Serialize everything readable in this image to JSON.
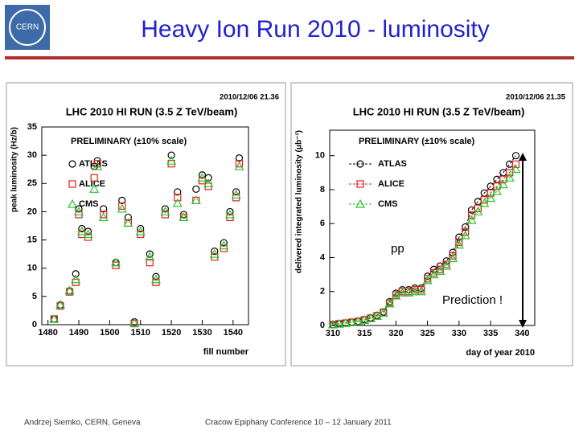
{
  "slide": {
    "title": "Heavy Ion Run 2010 - luminosity",
    "footer_left": "Andrzej Siemko, CERN, Geneva",
    "footer_center": "Cracow Epiphany Conference 10 – 12 January 2011"
  },
  "chart_data": [
    {
      "type": "scatter",
      "timestamp": "2010/12/06   21.36",
      "title": "LHC 2010 HI RUN (3.5 Z TeV/beam)",
      "note": "PRELIMINARY (±10% scale)",
      "y_label": "peak luminosity (Hz/b)",
      "x_label": "fill number",
      "xlim": [
        1478,
        1545
      ],
      "xticks": [
        1480,
        1490,
        1500,
        1510,
        1520,
        1530,
        1540
      ],
      "ylim": [
        0,
        35
      ],
      "yticks": [
        0,
        5,
        10,
        15,
        20,
        25,
        30,
        35
      ],
      "x": [
        1482,
        1484,
        1487,
        1489,
        1490,
        1491,
        1493,
        1495,
        1496,
        1498,
        1502,
        1504,
        1506,
        1508,
        1510,
        1513,
        1515,
        1518,
        1520,
        1522,
        1524,
        1528,
        1530,
        1532,
        1534,
        1537,
        1539,
        1541,
        1542
      ],
      "series": [
        {
          "name": "ATLAS",
          "color": "#000000",
          "marker": "circle",
          "values": [
            1,
            3.5,
            6,
            9,
            20.5,
            17,
            16.5,
            28,
            29,
            20.5,
            11,
            22,
            19,
            0.5,
            17,
            12.5,
            8.5,
            20.5,
            30,
            23.5,
            19.5,
            24,
            26.5,
            26,
            13,
            14.5,
            20,
            23.5,
            29.5
          ]
        },
        {
          "name": "ALICE",
          "color": "#e02020",
          "marker": "square",
          "values": [
            1,
            3.3,
            5.8,
            7.5,
            19.5,
            16,
            15.5,
            26,
            28.5,
            19.5,
            10.5,
            21,
            18,
            0.2,
            16,
            11,
            7.5,
            19.5,
            28.5,
            22.5,
            19,
            22,
            25.5,
            24.5,
            12,
            13.5,
            19,
            22.5,
            28.5
          ]
        },
        {
          "name": "CMS",
          "color": "#30c030",
          "marker": "triangle",
          "values": [
            1,
            3.5,
            6,
            8,
            20,
            16.5,
            16,
            24,
            28,
            19,
            11,
            20.5,
            18,
            0.3,
            16.5,
            12,
            8,
            20,
            29,
            21.5,
            19,
            22,
            26,
            25,
            12.5,
            14,
            19.5,
            23,
            28
          ]
        }
      ]
    },
    {
      "type": "line",
      "timestamp": "2010/12/06   21.35",
      "title": "LHC 2010 HI RUN (3.5 Z TeV/beam)",
      "note": "PRELIMINARY (±10% scale)",
      "y_label": "delivered integrated luminosity (μb⁻¹)",
      "x_label": "day of year 2010",
      "annotations": [
        "pp",
        "Prediction !"
      ],
      "xlim": [
        309.5,
        342
      ],
      "xticks": [
        310,
        315,
        320,
        325,
        330,
        335,
        340
      ],
      "ylim": [
        0,
        11.5
      ],
      "yticks": [
        0,
        2,
        4,
        6,
        8,
        10
      ],
      "x": [
        310,
        311,
        312,
        313,
        314,
        315,
        316,
        317,
        318,
        319,
        320,
        321,
        322,
        323,
        324,
        325,
        326,
        327,
        328,
        329,
        330,
        331,
        332,
        333,
        334,
        335,
        336,
        337,
        338,
        339
      ],
      "series": [
        {
          "name": "ATLAS",
          "color": "#000000",
          "marker": "circle",
          "values": [
            0.05,
            0.1,
            0.15,
            0.2,
            0.25,
            0.35,
            0.45,
            0.6,
            0.8,
            1.4,
            1.9,
            2.1,
            2.1,
            2.2,
            2.2,
            2.9,
            3.3,
            3.5,
            3.8,
            4.3,
            5.2,
            5.8,
            6.8,
            7.3,
            7.8,
            8.2,
            8.6,
            9.0,
            9.5,
            10.0
          ]
        },
        {
          "name": "ALICE",
          "color": "#e02020",
          "marker": "square",
          "values": [
            0.05,
            0.1,
            0.14,
            0.19,
            0.24,
            0.33,
            0.43,
            0.57,
            0.76,
            1.33,
            1.8,
            2.0,
            2.0,
            2.1,
            2.1,
            2.75,
            3.1,
            3.3,
            3.6,
            4.1,
            4.9,
            5.5,
            6.5,
            6.9,
            7.4,
            7.8,
            8.2,
            8.6,
            9.0,
            9.5
          ]
        },
        {
          "name": "CMS",
          "color": "#30c030",
          "marker": "triangle",
          "values": [
            0.05,
            0.09,
            0.14,
            0.18,
            0.23,
            0.32,
            0.41,
            0.55,
            0.74,
            1.29,
            1.75,
            1.93,
            1.93,
            2.0,
            2.0,
            2.65,
            3.0,
            3.2,
            3.5,
            3.95,
            4.75,
            5.3,
            6.2,
            6.7,
            7.2,
            7.5,
            7.9,
            8.3,
            8.7,
            9.2
          ]
        }
      ]
    }
  ]
}
